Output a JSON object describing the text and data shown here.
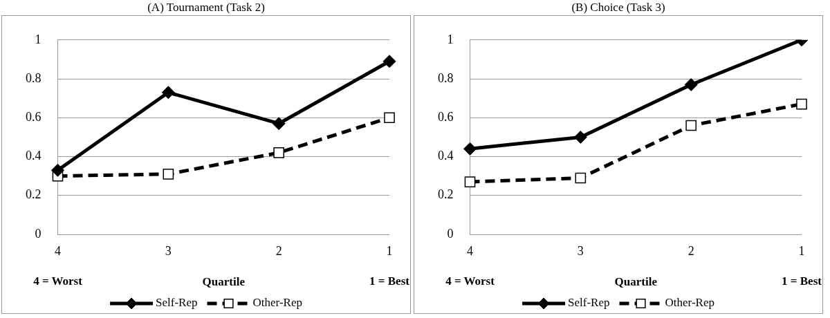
{
  "chart_data": [
    {
      "type": "line",
      "title": "(A) Tournament (Task 2)",
      "categories": [
        "4",
        "3",
        "2",
        "1"
      ],
      "xlabel": "Quartile",
      "annotations": [
        "4 = Worst",
        "1 = Best"
      ],
      "ylim": [
        0,
        1
      ],
      "yticks": [
        0,
        0.2,
        0.4,
        0.6,
        0.8,
        1
      ],
      "grid": "y",
      "legend": "bottom",
      "series": [
        {
          "name": "Self-Rep",
          "color": "#000000",
          "marker": "diamond",
          "line_style": "solid",
          "values": [
            0.33,
            0.73,
            0.57,
            0.89
          ]
        },
        {
          "name": "Other-Rep",
          "color": "#000000",
          "marker": "square",
          "line_style": "dashed",
          "values": [
            0.3,
            0.31,
            0.42,
            0.6
          ]
        }
      ]
    },
    {
      "type": "line",
      "title": "(B) Choice (Task 3)",
      "categories": [
        "4",
        "3",
        "2",
        "1"
      ],
      "xlabel": "Quartile",
      "annotations": [
        "4 = Worst",
        "1 = Best"
      ],
      "ylim": [
        0,
        1
      ],
      "yticks": [
        0,
        0.2,
        0.4,
        0.6,
        0.8,
        1
      ],
      "grid": "y",
      "legend": "bottom",
      "series": [
        {
          "name": "Self-Rep",
          "color": "#000000",
          "marker": "diamond",
          "line_style": "solid",
          "values": [
            0.44,
            0.5,
            0.77,
            1.0
          ]
        },
        {
          "name": "Other-Rep",
          "color": "#000000",
          "marker": "square",
          "line_style": "dashed",
          "values": [
            0.27,
            0.29,
            0.56,
            0.67
          ]
        }
      ]
    }
  ]
}
